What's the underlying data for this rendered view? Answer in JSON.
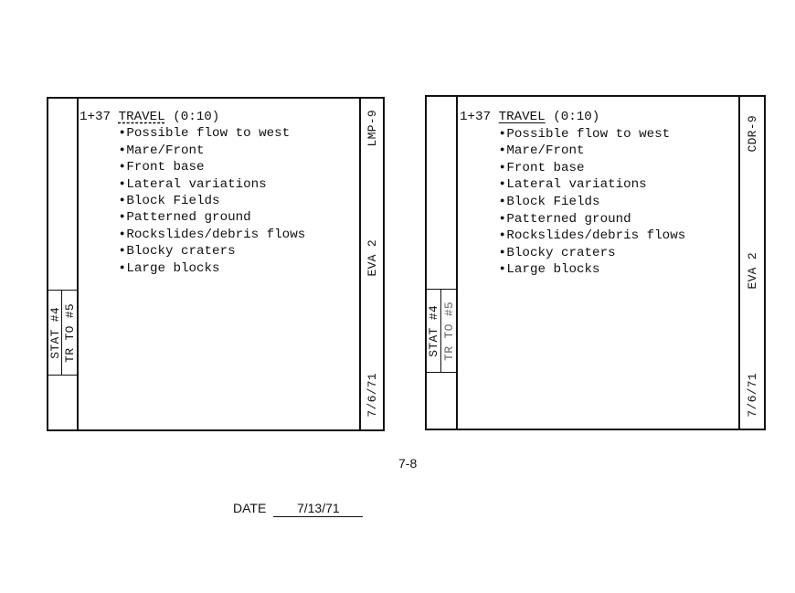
{
  "cards": [
    {
      "heading_time": "1+37",
      "heading_title": "TRAVEL",
      "heading_duration": "(0:10)",
      "items": [
        "Possible flow to west",
        "Mare/Front",
        "Front base",
        "Lateral variations",
        "Block Fields",
        "Patterned ground",
        "Rockslides/debris flows",
        "Blocky craters",
        "Large blocks"
      ],
      "stat": "STAT #4",
      "traverse": "TR TO #5",
      "crew": "LMP-9",
      "eva": "EVA 2",
      "date": "7/6/71"
    },
    {
      "heading_time": "1+37",
      "heading_title": "TRAVEL",
      "heading_duration": "(0:10)",
      "items": [
        "Possible flow to west",
        "Mare/Front",
        "Front base",
        "Lateral variations",
        "Block Fields",
        "Patterned ground",
        "Rockslides/debris flows",
        "Blocky craters",
        "Large blocks"
      ],
      "stat": "STAT #4",
      "traverse": "TR TO #5",
      "crew": "CDR-9",
      "eva": "EVA 2",
      "date": "7/6/71"
    }
  ],
  "footer": {
    "page_number": "7-8",
    "date_label": "DATE",
    "date_value": "7/13/71"
  }
}
